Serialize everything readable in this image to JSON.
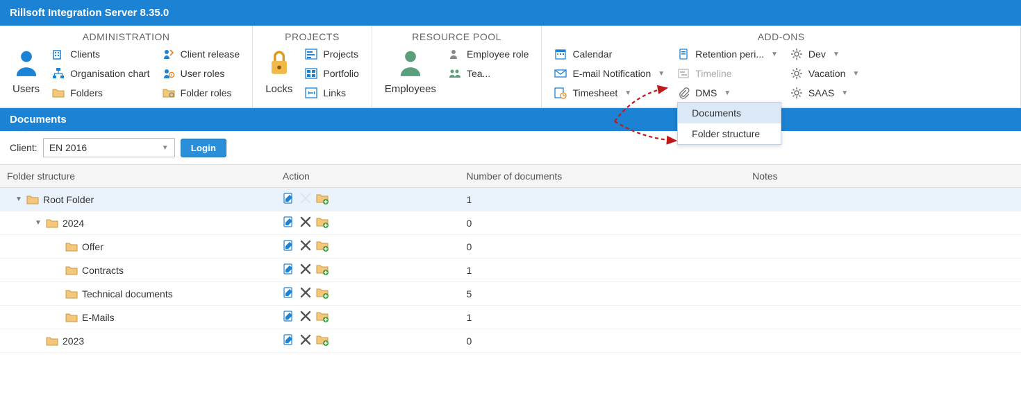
{
  "title": "Rillsoft Integration Server 8.35.0",
  "ribbon": {
    "administration": {
      "title": "ADMINISTRATION",
      "users": "Users",
      "clients": "Clients",
      "org_chart": "Organisation chart",
      "folders": "Folders",
      "client_release": "Client release",
      "user_roles": "User roles",
      "folder_roles": "Folder roles"
    },
    "projects": {
      "title": "PROJECTS",
      "locks": "Locks",
      "projects": "Projects",
      "portfolio": "Portfolio",
      "links": "Links"
    },
    "resource_pool": {
      "title": "RESOURCE POOL",
      "employees": "Employees",
      "employee_role": "Employee role",
      "tea": "Tea..."
    },
    "addons": {
      "title": "ADD-ONS",
      "calendar": "Calendar",
      "email_notification": "E-mail Notification",
      "timesheet": "Timesheet",
      "retention": "Retention peri...",
      "timeline": "Timeline",
      "dms": "DMS",
      "dev": "Dev",
      "vacation": "Vacation",
      "saas": "SAAS"
    }
  },
  "dropdown": {
    "documents": "Documents",
    "folder_structure": "Folder structure"
  },
  "section": "Documents",
  "client_label": "Client:",
  "client_value": "EN 2016",
  "login_btn": "Login",
  "columns": {
    "folder": "Folder structure",
    "action": "Action",
    "num_docs": "Number of documents",
    "notes": "Notes"
  },
  "rows": [
    {
      "indent": 0,
      "expand": "▼",
      "name": "Root Folder",
      "count": "1",
      "del_disabled": true,
      "selected": true
    },
    {
      "indent": 1,
      "expand": "▼",
      "name": "2024",
      "count": "0",
      "del_disabled": false,
      "selected": false
    },
    {
      "indent": 2,
      "expand": "",
      "name": "Offer",
      "count": "0",
      "del_disabled": false,
      "selected": false
    },
    {
      "indent": 2,
      "expand": "",
      "name": "Contracts",
      "count": "1",
      "del_disabled": false,
      "selected": false
    },
    {
      "indent": 2,
      "expand": "",
      "name": "Technical documents",
      "count": "5",
      "del_disabled": false,
      "selected": false
    },
    {
      "indent": 2,
      "expand": "",
      "name": "E-Mails",
      "count": "1",
      "del_disabled": false,
      "selected": false
    },
    {
      "indent": 1,
      "expand": "",
      "name": "2023",
      "count": "0",
      "del_disabled": false,
      "selected": false
    }
  ],
  "colors": {
    "brand": "#1c82d4",
    "folder_fill": "#f5c77b",
    "folder_stroke": "#c99a3d"
  },
  "col_widths": {
    "folder": "27%",
    "action": "18%",
    "num_docs": "28%",
    "notes": "27%"
  }
}
